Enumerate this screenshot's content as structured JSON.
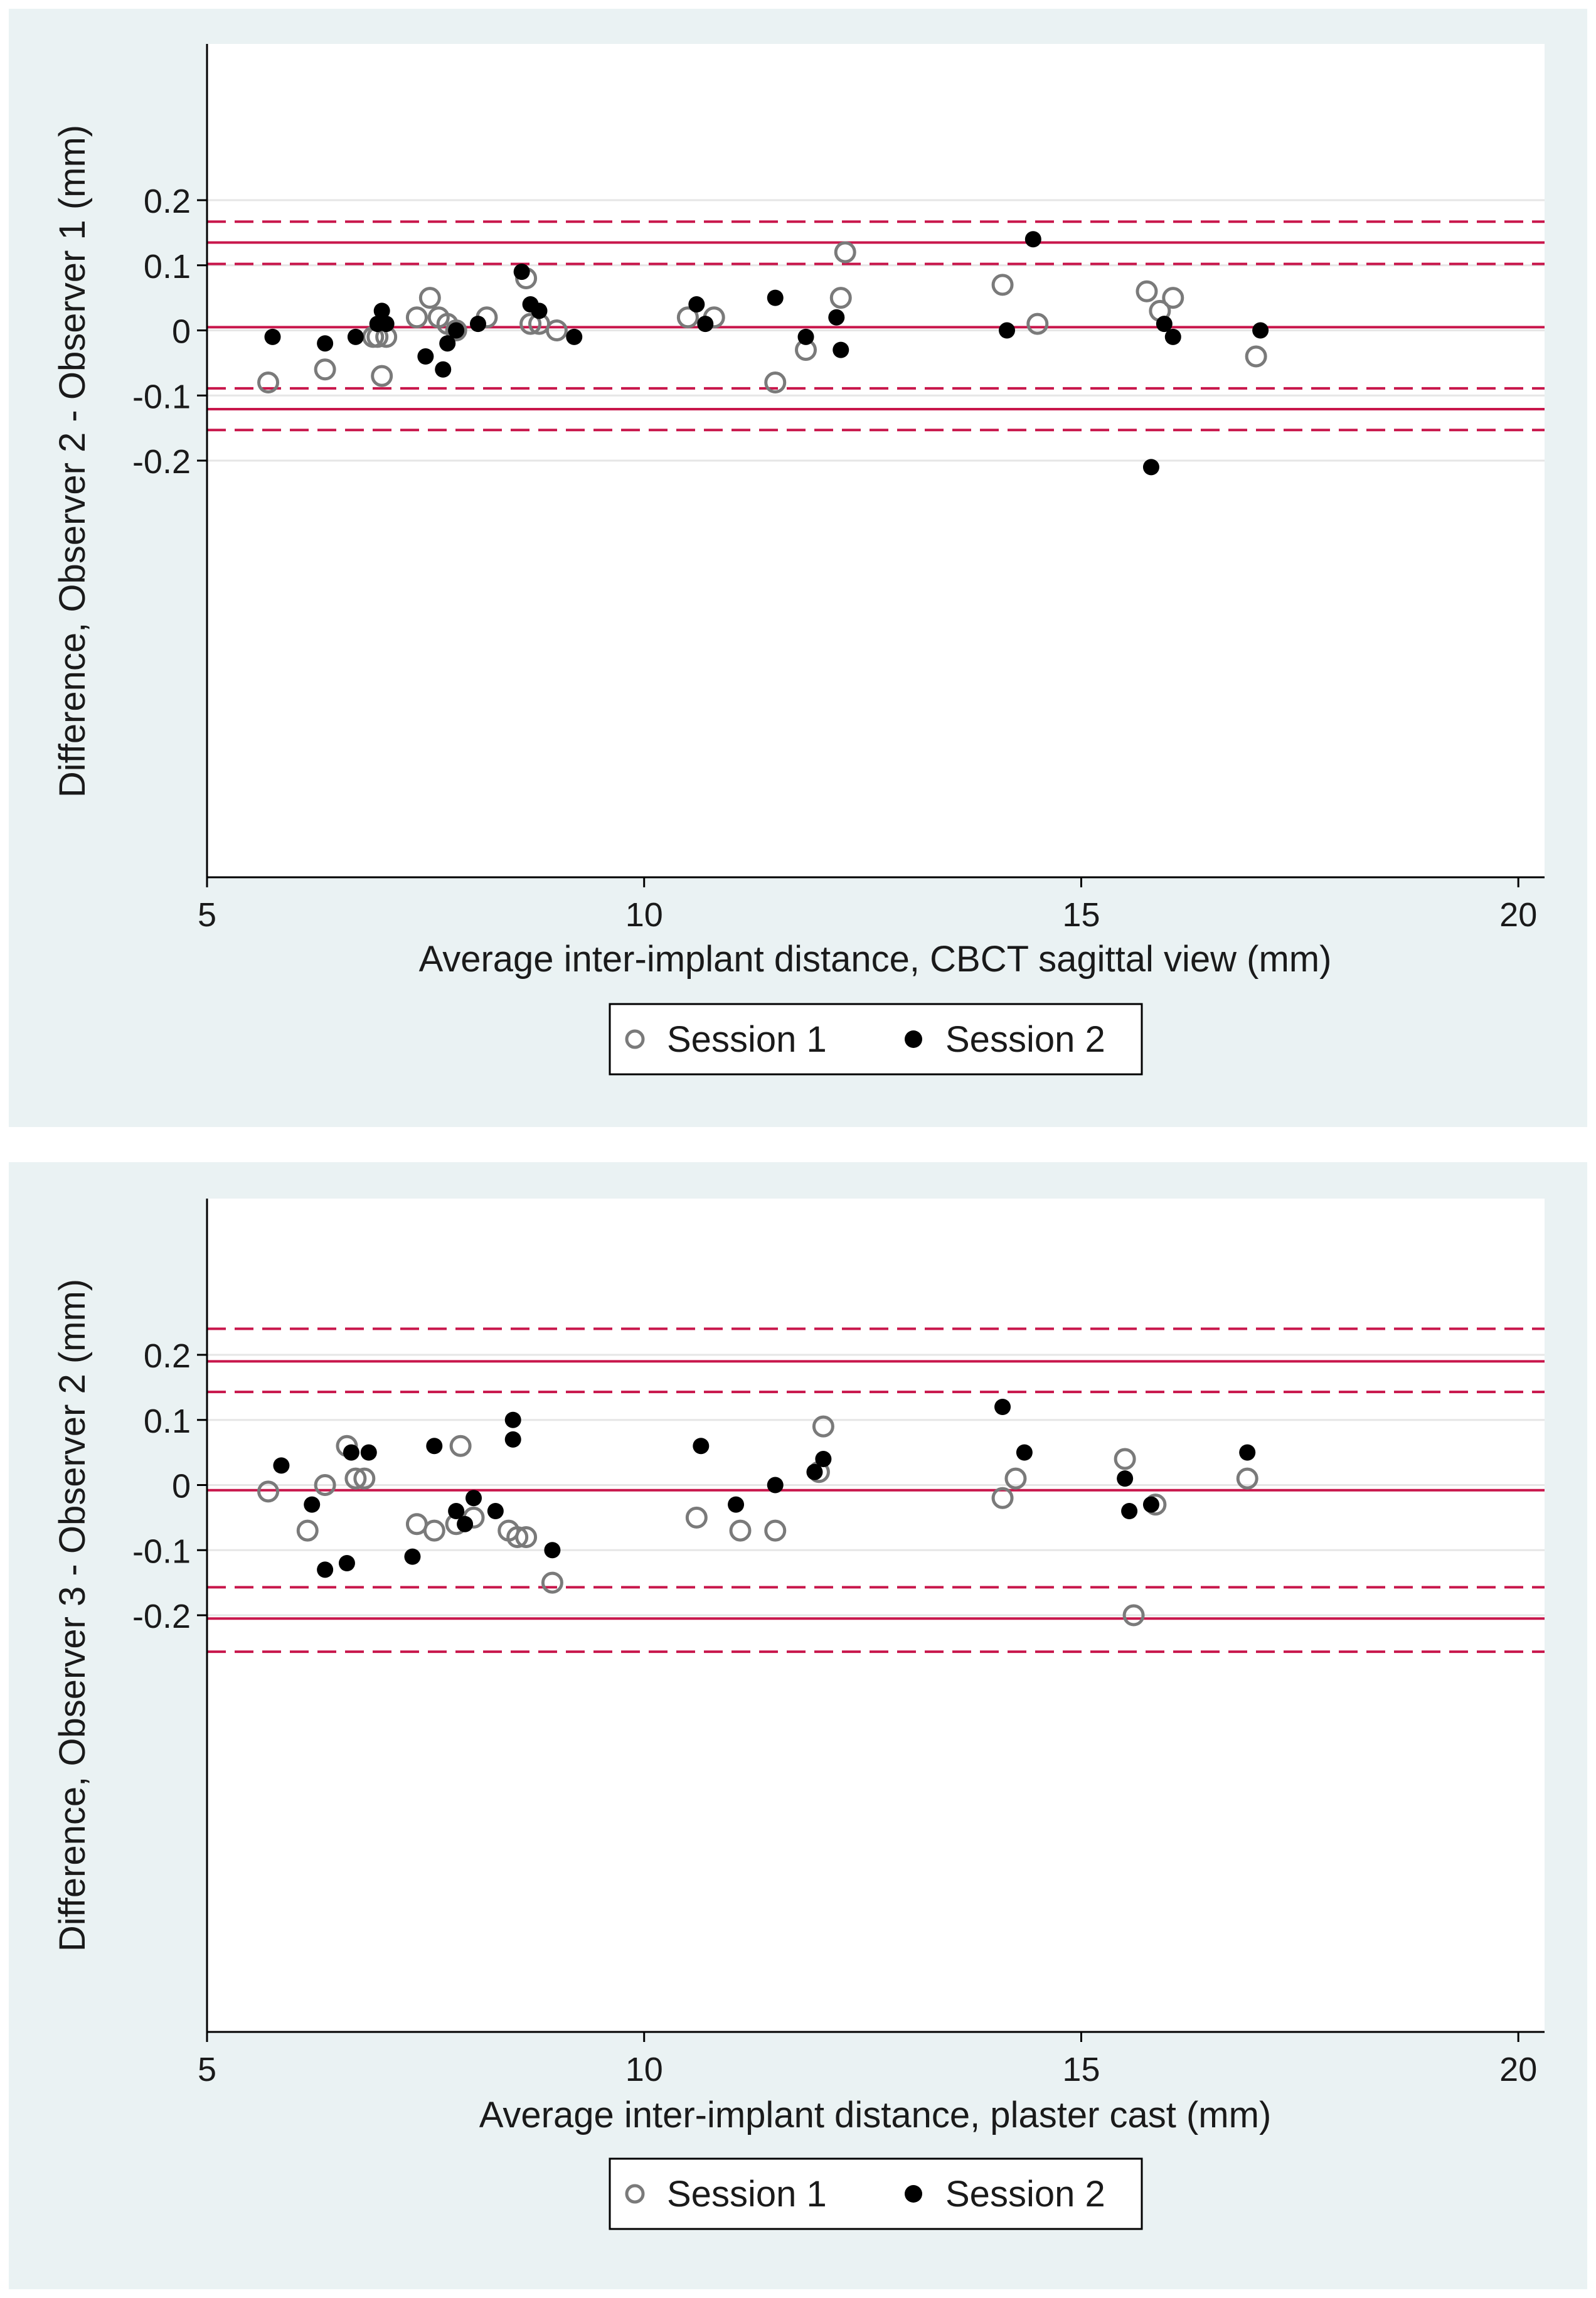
{
  "chart_data": [
    {
      "type": "scatter",
      "xlabel": "Average inter-implant distance, CBCT sagittal view (mm)",
      "ylabel": "Difference, Observer 2 - Observer 1 (mm)",
      "xlim": [
        5,
        20.3
      ],
      "ylim": [
        -0.84,
        0.44
      ],
      "xticks": [
        5,
        10,
        15,
        20
      ],
      "yticks": [
        0.2,
        0.1,
        0,
        -0.1,
        -0.2
      ],
      "ytick_labels": [
        "0.2",
        "0.1",
        "0",
        "-0.1",
        "-0.2"
      ],
      "xtick_labels": [
        "5",
        "10",
        "15",
        "20"
      ],
      "grid": true,
      "reference_lines": [
        {
          "y": 0.167,
          "style": "dashed"
        },
        {
          "y": 0.135,
          "style": "solid"
        },
        {
          "y": 0.102,
          "style": "dashed"
        },
        {
          "y": 0.005,
          "style": "solid"
        },
        {
          "y": -0.089,
          "style": "dashed"
        },
        {
          "y": -0.121,
          "style": "solid"
        },
        {
          "y": -0.153,
          "style": "dashed"
        }
      ],
      "legend": {
        "position": "bottom",
        "entries": [
          "Session 1",
          "Session 2"
        ]
      },
      "series": [
        {
          "name": "Session 1",
          "marker": "hollow-circle",
          "color": "#7a7a7a",
          "points": [
            [
              5.7,
              -0.08
            ],
            [
              6.35,
              -0.06
            ],
            [
              6.9,
              -0.01
            ],
            [
              7.0,
              -0.07
            ],
            [
              7.05,
              -0.01
            ],
            [
              6.95,
              -0.01
            ],
            [
              7.4,
              0.02
            ],
            [
              7.55,
              0.05
            ],
            [
              7.65,
              0.02
            ],
            [
              7.75,
              0.01
            ],
            [
              7.85,
              0.0
            ],
            [
              8.2,
              0.02
            ],
            [
              8.65,
              0.08
            ],
            [
              8.7,
              0.01
            ],
            [
              8.8,
              0.01
            ],
            [
              9.0,
              0.0
            ],
            [
              10.5,
              0.02
            ],
            [
              10.8,
              0.02
            ],
            [
              11.5,
              -0.08
            ],
            [
              11.85,
              -0.03
            ],
            [
              12.25,
              0.05
            ],
            [
              12.3,
              0.12
            ],
            [
              14.1,
              0.07
            ],
            [
              14.5,
              0.01
            ],
            [
              15.75,
              0.06
            ],
            [
              15.9,
              0.03
            ],
            [
              16.05,
              0.05
            ],
            [
              17.0,
              -0.04
            ]
          ]
        },
        {
          "name": "Session 2",
          "marker": "filled-circle",
          "color": "#000000",
          "points": [
            [
              5.75,
              -0.01
            ],
            [
              6.35,
              -0.02
            ],
            [
              6.7,
              -0.01
            ],
            [
              6.95,
              0.01
            ],
            [
              7.0,
              0.03
            ],
            [
              7.05,
              0.01
            ],
            [
              7.5,
              -0.04
            ],
            [
              7.7,
              -0.06
            ],
            [
              7.75,
              -0.02
            ],
            [
              7.85,
              0.0
            ],
            [
              8.1,
              0.01
            ],
            [
              8.6,
              0.09
            ],
            [
              8.7,
              0.04
            ],
            [
              8.8,
              0.03
            ],
            [
              9.2,
              -0.01
            ],
            [
              10.6,
              0.04
            ],
            [
              10.7,
              0.01
            ],
            [
              11.5,
              0.05
            ],
            [
              11.85,
              -0.01
            ],
            [
              12.2,
              0.02
            ],
            [
              12.25,
              -0.03
            ],
            [
              14.15,
              0.0
            ],
            [
              14.45,
              0.14
            ],
            [
              15.8,
              -0.21
            ],
            [
              15.95,
              0.01
            ],
            [
              16.05,
              -0.01
            ],
            [
              17.05,
              0.0
            ]
          ]
        }
      ]
    },
    {
      "type": "scatter",
      "xlabel": "Average inter-implant distance, plaster cast (mm)",
      "ylabel": "Difference, Observer 3 - Observer 2 (mm)",
      "xlim": [
        5,
        20.3
      ],
      "ylim": [
        -0.84,
        0.44
      ],
      "xticks": [
        5,
        10,
        15,
        20
      ],
      "yticks": [
        0.2,
        0.1,
        0,
        -0.1,
        -0.2
      ],
      "ytick_labels": [
        "0.2",
        "0.1",
        "0",
        "-0.1",
        "-0.2"
      ],
      "xtick_labels": [
        "5",
        "10",
        "15",
        "20"
      ],
      "grid": true,
      "reference_lines": [
        {
          "y": 0.24,
          "style": "dashed"
        },
        {
          "y": 0.19,
          "style": "solid"
        },
        {
          "y": 0.143,
          "style": "dashed"
        },
        {
          "y": -0.008,
          "style": "solid"
        },
        {
          "y": -0.157,
          "style": "dashed"
        },
        {
          "y": -0.205,
          "style": "solid"
        },
        {
          "y": -0.256,
          "style": "dashed"
        }
      ],
      "legend": {
        "position": "bottom",
        "entries": [
          "Session 1",
          "Session 2"
        ]
      },
      "series": [
        {
          "name": "Session 1",
          "marker": "hollow-circle",
          "color": "#7a7a7a",
          "points": [
            [
              5.7,
              -0.01
            ],
            [
              6.15,
              -0.07
            ],
            [
              6.35,
              0.0
            ],
            [
              6.6,
              0.06
            ],
            [
              6.7,
              0.01
            ],
            [
              6.8,
              0.01
            ],
            [
              7.4,
              -0.06
            ],
            [
              7.6,
              -0.07
            ],
            [
              7.85,
              -0.06
            ],
            [
              7.9,
              0.06
            ],
            [
              8.05,
              -0.05
            ],
            [
              8.45,
              -0.07
            ],
            [
              8.55,
              -0.08
            ],
            [
              8.65,
              -0.08
            ],
            [
              8.95,
              -0.15
            ],
            [
              10.6,
              -0.05
            ],
            [
              11.1,
              -0.07
            ],
            [
              11.5,
              -0.07
            ],
            [
              12.0,
              0.02
            ],
            [
              12.05,
              0.09
            ],
            [
              14.1,
              -0.02
            ],
            [
              14.25,
              0.01
            ],
            [
              15.5,
              0.04
            ],
            [
              15.6,
              -0.2
            ],
            [
              15.85,
              -0.03
            ],
            [
              16.9,
              0.01
            ]
          ]
        },
        {
          "name": "Session 2",
          "marker": "filled-circle",
          "color": "#000000",
          "points": [
            [
              5.85,
              0.03
            ],
            [
              6.2,
              -0.03
            ],
            [
              6.35,
              -0.13
            ],
            [
              6.6,
              -0.12
            ],
            [
              6.65,
              0.05
            ],
            [
              6.85,
              0.05
            ],
            [
              7.35,
              -0.11
            ],
            [
              7.6,
              0.06
            ],
            [
              7.85,
              -0.04
            ],
            [
              7.95,
              -0.06
            ],
            [
              8.05,
              -0.02
            ],
            [
              8.3,
              -0.04
            ],
            [
              8.5,
              0.1
            ],
            [
              8.5,
              0.07
            ],
            [
              8.95,
              -0.1
            ],
            [
              10.65,
              0.06
            ],
            [
              11.05,
              -0.03
            ],
            [
              11.5,
              0.0
            ],
            [
              11.95,
              0.02
            ],
            [
              12.05,
              0.04
            ],
            [
              14.1,
              0.12
            ],
            [
              14.35,
              0.05
            ],
            [
              15.5,
              0.01
            ],
            [
              15.55,
              -0.04
            ],
            [
              15.8,
              -0.03
            ],
            [
              16.9,
              0.05
            ]
          ]
        }
      ]
    }
  ]
}
